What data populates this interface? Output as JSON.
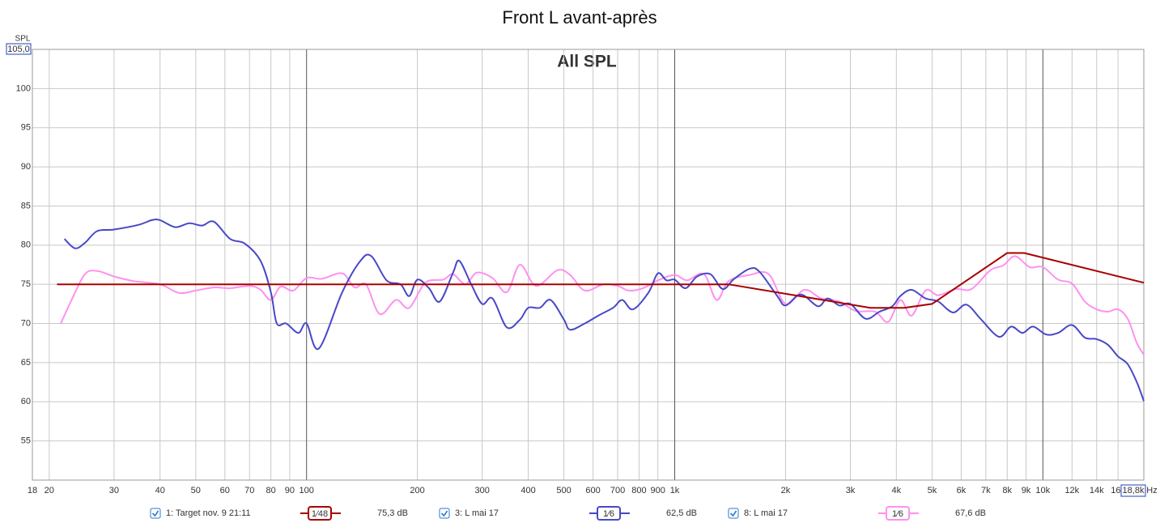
{
  "chart_data": {
    "type": "line",
    "title": "Front L avant-après",
    "subtitle": "All SPL",
    "y_label": "SPL",
    "x_unit": "Hz",
    "log_x": true,
    "grid": true,
    "xlim": [
      18,
      18800
    ],
    "ylim": [
      50,
      105
    ],
    "yticks": [
      55,
      60,
      65,
      70,
      75,
      80,
      85,
      90,
      95,
      100,
      {
        "value": 105,
        "label": "105,0"
      }
    ],
    "xticks": [
      18,
      20,
      30,
      40,
      50,
      60,
      70,
      80,
      90,
      100,
      200,
      300,
      400,
      500,
      600,
      700,
      800,
      900,
      {
        "value": 1000,
        "label": "1k"
      },
      {
        "value": 2000,
        "label": "2k"
      },
      {
        "value": 3000,
        "label": "3k"
      },
      {
        "value": 4000,
        "label": "4k"
      },
      {
        "value": 5000,
        "label": "5k"
      },
      {
        "value": 6000,
        "label": "6k"
      },
      {
        "value": 7000,
        "label": "7k"
      },
      {
        "value": 8000,
        "label": "8k"
      },
      {
        "value": 9000,
        "label": "9k"
      },
      {
        "value": 10000,
        "label": "10k"
      },
      {
        "value": 12000,
        "label": "12k"
      },
      {
        "value": 14000,
        "label": "14k"
      },
      {
        "value": 16000,
        "label": "16k"
      },
      {
        "value": 18800,
        "label": "18,8k"
      }
    ],
    "series": [
      {
        "name": "1: Target nov. 9 21:11",
        "smoothing": "1⁄48",
        "level": "75,3 dB",
        "color": "#a80000",
        "x": [
          21,
          1400,
          3400,
          4200,
          5000,
          8000,
          8900,
          18800
        ],
        "values": [
          75,
          75,
          72,
          72,
          72.5,
          79,
          79,
          75.2
        ]
      },
      {
        "name": "3: L mai 17",
        "smoothing": "1⁄6",
        "level": "62,5 dB",
        "color": "#4848c8",
        "x": [
          22,
          23.5,
          25,
          27,
          30,
          35,
          38,
          40,
          44,
          48,
          52,
          56,
          62,
          68,
          75,
          80,
          83,
          88,
          95,
          100,
          108,
          125,
          140,
          150,
          165,
          180,
          190,
          200,
          215,
          230,
          250,
          260,
          280,
          300,
          320,
          350,
          380,
          400,
          430,
          460,
          500,
          520,
          570,
          620,
          680,
          720,
          770,
          850,
          900,
          950,
          1000,
          1070,
          1150,
          1250,
          1350,
          1450,
          1600,
          1700,
          1900,
          2000,
          2200,
          2450,
          2600,
          2800,
          3000,
          3300,
          3600,
          3900,
          4100,
          4400,
          4800,
          5200,
          5700,
          6200,
          6800,
          7600,
          8200,
          8800,
          9400,
          10200,
          11000,
          12000,
          13000,
          14000,
          15000,
          16000,
          17000,
          18000,
          18800
        ],
        "values": [
          80.8,
          79.6,
          80.3,
          81.8,
          82,
          82.6,
          83.2,
          83.2,
          82.3,
          82.8,
          82.5,
          83,
          80.8,
          80.2,
          78,
          74,
          70,
          70,
          68.8,
          70,
          66.8,
          74,
          78,
          78.6,
          75.5,
          75,
          73.5,
          75.6,
          74.5,
          72.8,
          76.5,
          78,
          75,
          72.5,
          73.2,
          69.5,
          70.5,
          72,
          72,
          73,
          70.5,
          69.2,
          70,
          71,
          72,
          73,
          71.8,
          74,
          76.4,
          75.5,
          75.6,
          74.5,
          76,
          76.3,
          74.4,
          75.7,
          77,
          76.6,
          73.5,
          72.3,
          73.7,
          72.2,
          73.2,
          72.3,
          72.5,
          70.6,
          71.5,
          72.2,
          73.5,
          74.3,
          73.2,
          72.8,
          71.4,
          72.4,
          70.5,
          68.3,
          69.6,
          68.8,
          69.6,
          68.6,
          68.8,
          69.8,
          68.2,
          68,
          67.3,
          65.8,
          64.8,
          62.5,
          60.1
        ]
      },
      {
        "name": "8: L mai 17",
        "smoothing": "1⁄6",
        "level": "67,6 dB",
        "color": "#ff90f0",
        "x": [
          21.5,
          23,
          25,
          27,
          30,
          34,
          40,
          45,
          50,
          56,
          62,
          70,
          75,
          80,
          85,
          92,
          100,
          110,
          125,
          135,
          145,
          158,
          175,
          190,
          210,
          235,
          250,
          270,
          290,
          320,
          350,
          380,
          420,
          480,
          520,
          570,
          640,
          700,
          750,
          820,
          900,
          1000,
          1080,
          1200,
          1300,
          1400,
          1600,
          1800,
          2000,
          2250,
          2500,
          2800,
          3100,
          3500,
          3800,
          4100,
          4400,
          4800,
          5200,
          5800,
          6400,
          7200,
          7800,
          8400,
          9200,
          10000,
          11000,
          12000,
          13000,
          14000,
          15000,
          16000,
          17000,
          18000,
          18800
        ],
        "values": [
          70,
          73,
          76.3,
          76.7,
          76,
          75.4,
          75,
          73.9,
          74.2,
          74.6,
          74.5,
          74.8,
          74.3,
          73,
          74.7,
          74.2,
          75.8,
          75.7,
          76.4,
          74.6,
          75,
          71.2,
          73,
          72,
          75.2,
          75.6,
          76.3,
          75,
          76.5,
          75.8,
          74,
          77.5,
          74.8,
          76.8,
          76.2,
          74.2,
          75,
          74.8,
          74.2,
          74.5,
          75.5,
          76.2,
          75.5,
          76.3,
          73,
          75.4,
          76.2,
          76.3,
          72.5,
          74.3,
          73.2,
          72.8,
          71.6,
          71.5,
          70.2,
          73,
          71,
          74.2,
          73.6,
          74.4,
          74.4,
          76.8,
          77.4,
          78.6,
          77.2,
          77.2,
          75.6,
          75.1,
          72.8,
          71.8,
          71.5,
          71.8,
          70.6,
          67.5,
          66
        ]
      }
    ]
  }
}
